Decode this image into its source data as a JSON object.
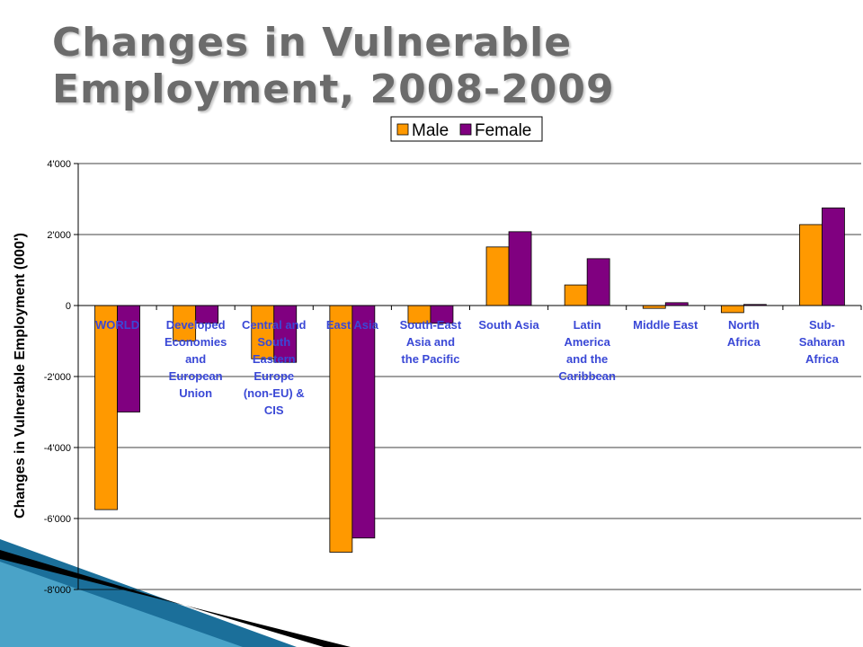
{
  "slide": {
    "title": "Changes in Vulnerable Employment, 2008-2009"
  },
  "chart_data": {
    "type": "bar",
    "title": "",
    "xlabel": "",
    "ylabel": "Changes in Vulnerable Employment (000')",
    "ylim": [
      -8000,
      4000
    ],
    "yticks": [
      4000,
      2000,
      0,
      -2000,
      -4000,
      -6000,
      -8000
    ],
    "ytick_labels": [
      "4'000",
      "2'000",
      "0",
      "-2'000",
      "-4'000",
      "-6'000",
      "-8'000"
    ],
    "grid": true,
    "legend_position": "top",
    "categories": [
      [
        "WORLD"
      ],
      [
        "Developed",
        "Economies",
        "and",
        "European",
        "Union"
      ],
      [
        "Central and",
        "South",
        "Eastern",
        "Europe",
        "(non-EU) &",
        "CIS"
      ],
      [
        "East Asia"
      ],
      [
        "South-East",
        "Asia and",
        "the Pacific"
      ],
      [
        "South Asia"
      ],
      [
        "Latin",
        "America",
        "and the",
        "Caribbean"
      ],
      [
        "Middle East"
      ],
      [
        "North",
        "Africa"
      ],
      [
        "Sub-",
        "Saharan",
        "Africa"
      ]
    ],
    "series": [
      {
        "name": "Male",
        "color": "#ff9900",
        "values": [
          -5750,
          -1000,
          -1500,
          -6950,
          -500,
          1650,
          580,
          -80,
          -200,
          2280
        ]
      },
      {
        "name": "Female",
        "color": "#800080",
        "values": [
          -3000,
          -500,
          -1600,
          -6550,
          -500,
          2080,
          1320,
          80,
          30,
          2750
        ]
      }
    ]
  },
  "decoration": {
    "corner_colors": [
      "#1b6f9a",
      "#4aa3c8",
      "#000000"
    ]
  }
}
